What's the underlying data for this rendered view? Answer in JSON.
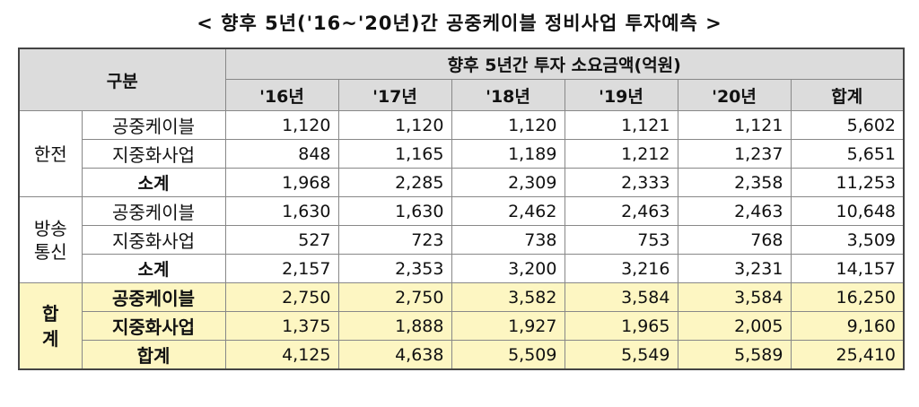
{
  "title": "< 향후 5년('16~'20년)간 공중케이블 정비사업 투자예측 >",
  "header": {
    "category": "구분",
    "group_title": "향후 5년간 투자 소요금액(억원)",
    "years": [
      "'16년",
      "'17년",
      "'18년",
      "'19년",
      "'20년",
      "합계"
    ]
  },
  "groups": [
    {
      "label": "한전",
      "rows": [
        {
          "name": "공중케이블",
          "values": [
            "1,120",
            "1,120",
            "1,120",
            "1,121",
            "1,121",
            "5,602"
          ]
        },
        {
          "name": "지중화사업",
          "values": [
            "848",
            "1,165",
            "1,189",
            "1,212",
            "1,237",
            "5,651"
          ]
        },
        {
          "name": "소계",
          "values": [
            "1,968",
            "2,285",
            "2,309",
            "2,333",
            "2,358",
            "11,253"
          ]
        }
      ]
    },
    {
      "label": "방송\n통신",
      "rows": [
        {
          "name": "공중케이블",
          "values": [
            "1,630",
            "1,630",
            "2,462",
            "2,463",
            "2,463",
            "10,648"
          ]
        },
        {
          "name": "지중화사업",
          "values": [
            "527",
            "723",
            "738",
            "753",
            "768",
            "3,509"
          ]
        },
        {
          "name": "소계",
          "values": [
            "2,157",
            "2,353",
            "3,200",
            "3,216",
            "3,231",
            "14,157"
          ]
        }
      ]
    },
    {
      "label": "합\n계",
      "rows": [
        {
          "name": "공중케이블",
          "values": [
            "2,750",
            "2,750",
            "3,582",
            "3,584",
            "3,584",
            "16,250"
          ]
        },
        {
          "name": "지중화사업",
          "values": [
            "1,375",
            "1,888",
            "1,927",
            "1,965",
            "2,005",
            "9,160"
          ]
        },
        {
          "name": "합계",
          "values": [
            "4,125",
            "4,638",
            "5,509",
            "5,549",
            "5,589",
            "25,410"
          ]
        }
      ]
    }
  ]
}
